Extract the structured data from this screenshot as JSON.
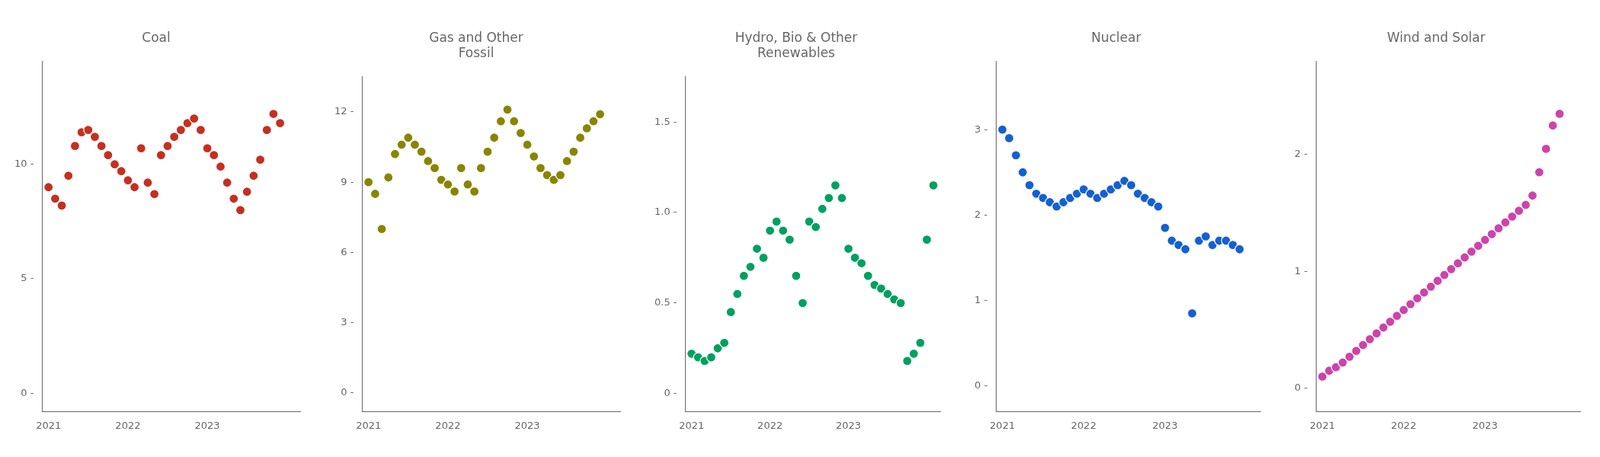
{
  "chart_data": [
    {
      "type": "scatter",
      "title": "Coal",
      "marker": "circle",
      "grid": false,
      "color": "#c43020",
      "xlim": [
        2020.92,
        2024.17
      ],
      "xticks": [
        2021,
        2022,
        2023
      ],
      "ylim": [
        -0.8,
        14.5
      ],
      "yticks": [
        {
          "value": 0,
          "label": "0 -"
        },
        {
          "value": 5,
          "label": "5 -"
        },
        {
          "value": 10,
          "label": "10 -"
        }
      ],
      "x": [
        2021,
        2021.083333,
        2021.166667,
        2021.25,
        2021.333333,
        2021.416667,
        2021.5,
        2021.583333,
        2021.666667,
        2021.75,
        2021.833333,
        2021.916667,
        2022,
        2022.083333,
        2022.166667,
        2022.25,
        2022.333333,
        2022.416667,
        2022.5,
        2022.583333,
        2022.666667,
        2022.75,
        2022.833333,
        2022.916667,
        2023,
        2023.083333,
        2023.166667,
        2023.25,
        2023.333333,
        2023.416667,
        2023.5,
        2023.583333,
        2023.666667,
        2023.75,
        2023.833333,
        2023.916667
      ],
      "values": [
        9.0,
        8.5,
        8.2,
        9.5,
        10.8,
        11.4,
        11.5,
        11.2,
        10.8,
        10.4,
        10.0,
        9.7,
        9.3,
        9.0,
        10.7,
        9.2,
        8.7,
        10.4,
        10.8,
        11.2,
        11.5,
        11.8,
        12.0,
        11.5,
        10.7,
        10.4,
        9.9,
        9.2,
        8.5,
        8.0,
        8.8,
        9.5,
        10.2,
        11.5,
        12.2,
        11.8
      ]
    },
    {
      "type": "scatter",
      "title": "Gas and Other\nFossil",
      "marker": "circle",
      "grid": false,
      "color": "#888500",
      "xlim": [
        2020.92,
        2024.17
      ],
      "xticks": [
        2021,
        2022,
        2023
      ],
      "ylim": [
        -0.8,
        13.5
      ],
      "yticks": [
        {
          "value": 0,
          "label": "0 -"
        },
        {
          "value": 3,
          "label": "3 -"
        },
        {
          "value": 6,
          "label": "6 -"
        },
        {
          "value": 9,
          "label": "9 -"
        },
        {
          "value": 12,
          "label": "12 -"
        }
      ],
      "x": [
        2021,
        2021.083333,
        2021.166667,
        2021.25,
        2021.333333,
        2021.416667,
        2021.5,
        2021.583333,
        2021.666667,
        2021.75,
        2021.833333,
        2021.916667,
        2022,
        2022.083333,
        2022.166667,
        2022.25,
        2022.333333,
        2022.416667,
        2022.5,
        2022.583333,
        2022.666667,
        2022.75,
        2022.833333,
        2022.916667,
        2023,
        2023.083333,
        2023.166667,
        2023.25,
        2023.333333,
        2023.416667,
        2023.5,
        2023.583333,
        2023.666667,
        2023.75,
        2023.833333,
        2023.916667
      ],
      "values": [
        9.0,
        8.5,
        7.0,
        9.2,
        10.2,
        10.6,
        10.9,
        10.6,
        10.3,
        9.9,
        9.6,
        9.1,
        8.9,
        8.6,
        9.6,
        8.9,
        8.6,
        9.6,
        10.3,
        10.9,
        11.6,
        12.1,
        11.6,
        11.1,
        10.6,
        10.1,
        9.6,
        9.3,
        9.1,
        9.3,
        9.9,
        10.3,
        10.9,
        11.3,
        11.6,
        11.9
      ]
    },
    {
      "type": "scatter",
      "title": "Hydro, Bio & Other\nRenewables",
      "marker": "circle",
      "grid": false,
      "color": "#00a060",
      "xlim": [
        2020.92,
        2024.17
      ],
      "xticks": [
        2021,
        2022,
        2023
      ],
      "ylim": [
        -0.1,
        1.75
      ],
      "yticks": [
        {
          "value": 0,
          "label": "0 -"
        },
        {
          "value": 0.5,
          "label": "0.5 -"
        },
        {
          "value": 1.0,
          "label": "1.0 -"
        },
        {
          "value": 1.5,
          "label": "1.5 -"
        }
      ],
      "x": [
        2021,
        2021.083333,
        2021.166667,
        2021.25,
        2021.333333,
        2021.416667,
        2021.5,
        2021.583333,
        2021.666667,
        2021.75,
        2021.833333,
        2021.916667,
        2022,
        2022.083333,
        2022.166667,
        2022.25,
        2022.333333,
        2022.416667,
        2022.5,
        2022.583333,
        2022.666667,
        2022.75,
        2022.833333,
        2022.916667,
        2023,
        2023.083333,
        2023.166667,
        2023.25,
        2023.333333,
        2023.416667,
        2023.5,
        2023.583333,
        2023.666667,
        2023.75,
        2023.833333,
        2023.916667,
        2024,
        2024.083333
      ],
      "values": [
        0.22,
        0.2,
        0.18,
        0.2,
        0.25,
        0.28,
        0.45,
        0.55,
        0.65,
        0.7,
        0.8,
        0.75,
        0.9,
        0.95,
        0.9,
        0.85,
        0.65,
        0.5,
        0.95,
        0.92,
        1.02,
        1.08,
        1.15,
        1.08,
        0.8,
        0.75,
        0.72,
        0.65,
        0.6,
        0.58,
        0.55,
        0.52,
        0.5,
        0.18,
        0.22,
        0.28,
        0.85,
        1.15
      ]
    },
    {
      "type": "scatter",
      "title": "Nuclear",
      "marker": "circle",
      "grid": false,
      "color": "#1560d0",
      "xlim": [
        2020.92,
        2024.17
      ],
      "xticks": [
        2021,
        2022,
        2023
      ],
      "ylim": [
        -0.3,
        3.8
      ],
      "yticks": [
        {
          "value": 0,
          "label": "0 -"
        },
        {
          "value": 1,
          "label": "1 -"
        },
        {
          "value": 2,
          "label": "2 -"
        },
        {
          "value": 3,
          "label": "3 -"
        }
      ],
      "x": [
        2021,
        2021.083333,
        2021.166667,
        2021.25,
        2021.333333,
        2021.416667,
        2021.5,
        2021.583333,
        2021.666667,
        2021.75,
        2021.833333,
        2021.916667,
        2022,
        2022.083333,
        2022.166667,
        2022.25,
        2022.333333,
        2022.416667,
        2022.5,
        2022.583333,
        2022.666667,
        2022.75,
        2022.833333,
        2022.916667,
        2023,
        2023.083333,
        2023.166667,
        2023.25,
        2023.333333,
        2023.416667,
        2023.5,
        2023.583333,
        2023.666667,
        2023.75,
        2023.833333,
        2023.916667
      ],
      "values": [
        3.0,
        2.9,
        2.7,
        2.5,
        2.35,
        2.25,
        2.2,
        2.15,
        2.1,
        2.15,
        2.2,
        2.25,
        2.3,
        2.25,
        2.2,
        2.25,
        2.3,
        2.35,
        2.4,
        2.35,
        2.25,
        2.2,
        2.15,
        2.1,
        1.85,
        1.7,
        1.65,
        1.6,
        0.85,
        1.7,
        1.75,
        1.65,
        1.7,
        1.7,
        1.65,
        1.6
      ]
    },
    {
      "type": "scatter",
      "title": "Wind and Solar",
      "marker": "circle",
      "grid": false,
      "color": "#cc44aa",
      "xlim": [
        2020.92,
        2024.17
      ],
      "xticks": [
        2021,
        2022,
        2023
      ],
      "ylim": [
        -0.2,
        2.8
      ],
      "yticks": [
        {
          "value": 0,
          "label": "0 -"
        },
        {
          "value": 1,
          "label": "1 -"
        },
        {
          "value": 2,
          "label": "2 -"
        }
      ],
      "x": [
        2021,
        2021.083333,
        2021.166667,
        2021.25,
        2021.333333,
        2021.416667,
        2021.5,
        2021.583333,
        2021.666667,
        2021.75,
        2021.833333,
        2021.916667,
        2022,
        2022.083333,
        2022.166667,
        2022.25,
        2022.333333,
        2022.416667,
        2022.5,
        2022.583333,
        2022.666667,
        2022.75,
        2022.833333,
        2022.916667,
        2023,
        2023.083333,
        2023.166667,
        2023.25,
        2023.333333,
        2023.416667,
        2023.5,
        2023.583333,
        2023.666667,
        2023.75,
        2023.833333,
        2023.916667
      ],
      "values": [
        0.1,
        0.15,
        0.18,
        0.22,
        0.27,
        0.32,
        0.37,
        0.42,
        0.47,
        0.52,
        0.57,
        0.62,
        0.67,
        0.72,
        0.77,
        0.82,
        0.87,
        0.92,
        0.97,
        1.02,
        1.07,
        1.12,
        1.17,
        1.22,
        1.27,
        1.32,
        1.37,
        1.42,
        1.47,
        1.52,
        1.57,
        1.65,
        1.85,
        2.05,
        2.25,
        2.35
      ]
    }
  ]
}
